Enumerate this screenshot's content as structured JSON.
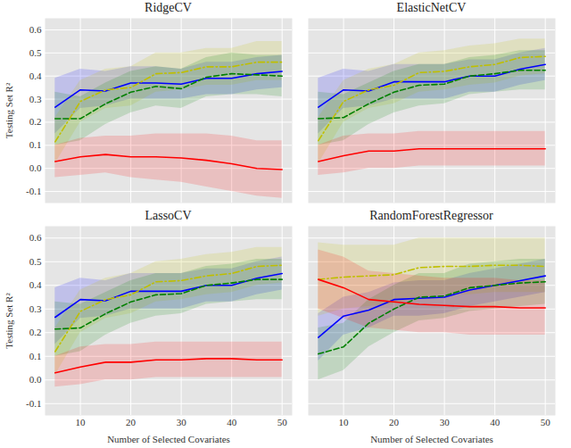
{
  "chart_data": [
    {
      "type": "line",
      "title": "RidgeCV",
      "ylabel": "Testing Set R²",
      "tick_labels": "y",
      "grid": true,
      "x": [
        5,
        10,
        15,
        20,
        25,
        30,
        35,
        40,
        45,
        50
      ],
      "xlim": [
        3,
        52
      ],
      "xticks": [
        10,
        20,
        30,
        40,
        50
      ],
      "ylim": [
        -0.15,
        0.65
      ],
      "yticks": [
        -0.1,
        {
          "value": 0,
          "label": "0.0"
        },
        0.1,
        0.2,
        0.3,
        0.4,
        0.5,
        0.6
      ],
      "series": [
        {
          "color": "#0000ff",
          "line_style": "solid",
          "values": [
            0.265,
            0.34,
            0.335,
            0.37,
            0.37,
            0.365,
            0.39,
            0.39,
            0.41,
            0.42
          ],
          "lower": [
            0.15,
            0.26,
            0.27,
            0.3,
            0.3,
            0.3,
            0.32,
            0.32,
            0.34,
            0.35
          ],
          "upper": [
            0.39,
            0.43,
            0.42,
            0.44,
            0.44,
            0.43,
            0.46,
            0.46,
            0.48,
            0.49
          ]
        },
        {
          "color": "#bfbf00",
          "line_style": "dashdot",
          "values": [
            0.115,
            0.29,
            0.34,
            0.35,
            0.41,
            0.415,
            0.44,
            0.44,
            0.46,
            0.46
          ],
          "lower": [
            0.02,
            0.2,
            0.26,
            0.27,
            0.33,
            0.34,
            0.36,
            0.36,
            0.38,
            0.38
          ],
          "upper": [
            0.22,
            0.38,
            0.43,
            0.44,
            0.5,
            0.5,
            0.52,
            0.52,
            0.55,
            0.55
          ]
        },
        {
          "color": "#008000",
          "line_style": "dashed",
          "values": [
            0.215,
            0.215,
            0.28,
            0.33,
            0.355,
            0.345,
            0.395,
            0.41,
            0.405,
            0.4
          ],
          "lower": [
            0.1,
            0.12,
            0.19,
            0.24,
            0.27,
            0.26,
            0.31,
            0.32,
            0.32,
            0.31
          ],
          "upper": [
            0.33,
            0.31,
            0.37,
            0.42,
            0.44,
            0.43,
            0.48,
            0.5,
            0.49,
            0.49
          ]
        },
        {
          "color": "#ff0000",
          "line_style": "solid",
          "values": [
            0.03,
            0.05,
            0.06,
            0.05,
            0.05,
            0.045,
            0.035,
            0.02,
            0.0,
            -0.005
          ],
          "lower": [
            -0.04,
            -0.03,
            -0.02,
            -0.04,
            -0.05,
            -0.06,
            -0.08,
            -0.1,
            -0.12,
            -0.13
          ],
          "upper": [
            0.1,
            0.13,
            0.14,
            0.14,
            0.15,
            0.15,
            0.15,
            0.14,
            0.12,
            0.12
          ]
        }
      ]
    },
    {
      "type": "line",
      "title": "ElasticNetCV",
      "tick_labels": false,
      "grid": true,
      "x": [
        5,
        10,
        15,
        20,
        25,
        30,
        35,
        40,
        45,
        50
      ],
      "xlim": [
        3,
        52
      ],
      "xticks": [
        10,
        20,
        30,
        40,
        50
      ],
      "ylim": [
        -0.15,
        0.65
      ],
      "yticks": [
        -0.1,
        {
          "value": 0,
          "label": "0.0"
        },
        0.1,
        0.2,
        0.3,
        0.4,
        0.5,
        0.6
      ],
      "series": [
        {
          "color": "#0000ff",
          "line_style": "solid",
          "values": [
            0.265,
            0.34,
            0.335,
            0.375,
            0.375,
            0.375,
            0.4,
            0.4,
            0.43,
            0.45
          ],
          "lower": [
            0.15,
            0.26,
            0.27,
            0.3,
            0.3,
            0.3,
            0.33,
            0.33,
            0.36,
            0.38
          ],
          "upper": [
            0.39,
            0.43,
            0.42,
            0.45,
            0.45,
            0.45,
            0.47,
            0.47,
            0.5,
            0.52
          ]
        },
        {
          "color": "#bfbf00",
          "line_style": "dashdot",
          "values": [
            0.12,
            0.29,
            0.34,
            0.36,
            0.415,
            0.42,
            0.44,
            0.45,
            0.48,
            0.485
          ],
          "lower": [
            0.02,
            0.2,
            0.26,
            0.28,
            0.33,
            0.34,
            0.36,
            0.37,
            0.4,
            0.41
          ],
          "upper": [
            0.22,
            0.38,
            0.43,
            0.45,
            0.5,
            0.51,
            0.53,
            0.54,
            0.56,
            0.56
          ]
        },
        {
          "color": "#008000",
          "line_style": "dashed",
          "values": [
            0.215,
            0.22,
            0.28,
            0.33,
            0.36,
            0.365,
            0.4,
            0.41,
            0.425,
            0.425
          ],
          "lower": [
            0.1,
            0.12,
            0.19,
            0.24,
            0.27,
            0.28,
            0.32,
            0.33,
            0.34,
            0.34
          ],
          "upper": [
            0.33,
            0.32,
            0.37,
            0.42,
            0.45,
            0.45,
            0.48,
            0.49,
            0.51,
            0.51
          ]
        },
        {
          "color": "#ff0000",
          "line_style": "solid",
          "values": [
            0.03,
            0.055,
            0.075,
            0.075,
            0.085,
            0.085,
            0.085,
            0.085,
            0.085,
            0.085
          ],
          "lower": [
            -0.03,
            -0.02,
            0.0,
            0.0,
            0.01,
            0.01,
            0.01,
            0.01,
            0.01,
            0.01
          ],
          "upper": [
            0.1,
            0.14,
            0.15,
            0.15,
            0.16,
            0.16,
            0.16,
            0.16,
            0.16,
            0.16
          ]
        }
      ]
    },
    {
      "type": "line",
      "title": "LassoCV",
      "xlabel": "Number of Selected Covariates",
      "ylabel": "Testing Set R²",
      "grid": true,
      "x": [
        5,
        10,
        15,
        20,
        25,
        30,
        35,
        40,
        45,
        50
      ],
      "xlim": [
        3,
        52
      ],
      "xticks": [
        10,
        20,
        30,
        40,
        50
      ],
      "ylim": [
        -0.15,
        0.65
      ],
      "yticks": [
        -0.1,
        {
          "value": 0,
          "label": "0.0"
        },
        0.1,
        0.2,
        0.3,
        0.4,
        0.5,
        0.6
      ],
      "series": [
        {
          "color": "#0000ff",
          "line_style": "solid",
          "values": [
            0.265,
            0.34,
            0.335,
            0.375,
            0.375,
            0.375,
            0.4,
            0.4,
            0.43,
            0.45
          ],
          "lower": [
            0.15,
            0.26,
            0.27,
            0.3,
            0.3,
            0.3,
            0.33,
            0.33,
            0.36,
            0.38
          ],
          "upper": [
            0.39,
            0.43,
            0.42,
            0.45,
            0.45,
            0.45,
            0.47,
            0.47,
            0.5,
            0.52
          ]
        },
        {
          "color": "#bfbf00",
          "line_style": "dashdot",
          "values": [
            0.12,
            0.29,
            0.34,
            0.36,
            0.415,
            0.42,
            0.44,
            0.45,
            0.48,
            0.485
          ],
          "lower": [
            0.02,
            0.2,
            0.26,
            0.28,
            0.33,
            0.34,
            0.36,
            0.37,
            0.4,
            0.41
          ],
          "upper": [
            0.22,
            0.38,
            0.43,
            0.45,
            0.5,
            0.51,
            0.53,
            0.54,
            0.56,
            0.56
          ]
        },
        {
          "color": "#008000",
          "line_style": "dashed",
          "values": [
            0.215,
            0.22,
            0.28,
            0.33,
            0.36,
            0.365,
            0.4,
            0.41,
            0.425,
            0.425
          ],
          "lower": [
            0.1,
            0.12,
            0.19,
            0.24,
            0.27,
            0.28,
            0.32,
            0.33,
            0.34,
            0.34
          ],
          "upper": [
            0.33,
            0.32,
            0.37,
            0.42,
            0.45,
            0.45,
            0.48,
            0.49,
            0.51,
            0.51
          ]
        },
        {
          "color": "#ff0000",
          "line_style": "solid",
          "values": [
            0.03,
            0.055,
            0.075,
            0.075,
            0.085,
            0.085,
            0.09,
            0.09,
            0.085,
            0.085
          ],
          "lower": [
            -0.03,
            -0.02,
            0.0,
            0.0,
            0.01,
            0.01,
            0.01,
            0.01,
            0.01,
            0.01
          ],
          "upper": [
            0.1,
            0.14,
            0.15,
            0.15,
            0.16,
            0.16,
            0.16,
            0.16,
            0.16,
            0.16
          ]
        }
      ]
    },
    {
      "type": "line",
      "title": "RandomForestRegressor",
      "xlabel": "Number of Selected Covariates",
      "tick_labels": "x",
      "grid": true,
      "x": [
        5,
        10,
        15,
        20,
        25,
        30,
        35,
        40,
        45,
        50
      ],
      "xlim": [
        3,
        52
      ],
      "xticks": [
        10,
        20,
        30,
        40,
        50
      ],
      "ylim": [
        -0.15,
        0.65
      ],
      "yticks": [
        -0.1,
        {
          "value": 0,
          "label": "0.0"
        },
        0.1,
        0.2,
        0.3,
        0.4,
        0.5,
        0.6
      ],
      "series": [
        {
          "color": "#0000ff",
          "line_style": "solid",
          "values": [
            0.18,
            0.27,
            0.295,
            0.34,
            0.345,
            0.35,
            0.38,
            0.4,
            0.42,
            0.44
          ],
          "lower": [
            0.08,
            0.19,
            0.22,
            0.27,
            0.27,
            0.28,
            0.31,
            0.33,
            0.35,
            0.37
          ],
          "upper": [
            0.28,
            0.35,
            0.37,
            0.41,
            0.42,
            0.42,
            0.45,
            0.47,
            0.49,
            0.51
          ]
        },
        {
          "color": "#bfbf00",
          "line_style": "dashdot",
          "values": [
            0.425,
            0.435,
            0.44,
            0.445,
            0.475,
            0.48,
            0.48,
            0.485,
            0.485,
            0.48
          ],
          "lower": [
            0.27,
            0.3,
            0.31,
            0.32,
            0.35,
            0.36,
            0.36,
            0.37,
            0.37,
            0.37
          ],
          "upper": [
            0.58,
            0.57,
            0.57,
            0.57,
            0.6,
            0.6,
            0.6,
            0.6,
            0.6,
            0.6
          ]
        },
        {
          "color": "#008000",
          "line_style": "dashed",
          "values": [
            0.11,
            0.14,
            0.24,
            0.3,
            0.35,
            0.355,
            0.39,
            0.4,
            0.41,
            0.415
          ],
          "lower": [
            0.0,
            0.04,
            0.14,
            0.2,
            0.25,
            0.26,
            0.29,
            0.3,
            0.31,
            0.32
          ],
          "upper": [
            0.22,
            0.24,
            0.34,
            0.4,
            0.45,
            0.45,
            0.49,
            0.5,
            0.51,
            0.51
          ]
        },
        {
          "color": "#ff0000",
          "line_style": "solid",
          "values": [
            0.425,
            0.39,
            0.34,
            0.33,
            0.32,
            0.315,
            0.31,
            0.31,
            0.305,
            0.305
          ],
          "lower": [
            0.3,
            0.26,
            0.22,
            0.21,
            0.2,
            0.2,
            0.19,
            0.19,
            0.19,
            0.19
          ],
          "upper": [
            0.55,
            0.52,
            0.46,
            0.45,
            0.44,
            0.43,
            0.43,
            0.43,
            0.42,
            0.42
          ]
        }
      ]
    }
  ]
}
